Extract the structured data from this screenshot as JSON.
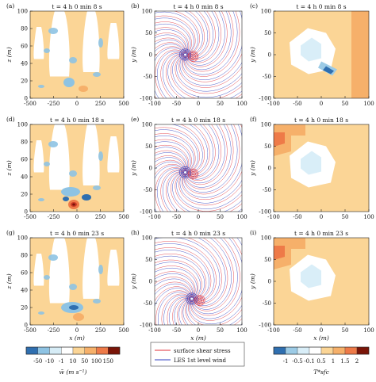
{
  "colors": {
    "c_neg50": "#2f6fb0",
    "c_neg10": "#8ec3e3",
    "c_neg1b": "#d6ecf6",
    "c_pale": "#ffffff",
    "c_10": "#fbd596",
    "c_50": "#f6b06a",
    "c_100": "#ee7a48",
    "c_150": "#cc3a26",
    "c_max": "#7a1508",
    "t_neg1": "#2f6fb0",
    "t_neg05": "#9ccbe6",
    "t_neg01": "#d9eef8",
    "t_0": "#ffffff",
    "t_05": "#fbd596",
    "t_1": "#f6b06a",
    "t_15": "#ee7a48",
    "t_2": "#7a1508",
    "red_line": "#e0303a",
    "blue_line": "#3040c0"
  },
  "chart_data": [
    {
      "panel": "a",
      "type": "heatmap",
      "title": "t = 4 h 0 min 8 s",
      "xlabel": "",
      "ylabel": "z (m)",
      "xlim": [
        -500,
        500
      ],
      "ylim": [
        0,
        100
      ],
      "xticks": [
        "-500",
        "-250",
        "0",
        "250",
        "500"
      ],
      "yticks": [
        "0",
        "20",
        "40",
        "60",
        "80",
        "100"
      ]
    },
    {
      "panel": "b",
      "type": "line",
      "title": "t = 4 h 0 min 8 s",
      "xlabel": "",
      "ylabel": "y (m)",
      "xlim": [
        -100,
        100
      ],
      "ylim": [
        -100,
        100
      ],
      "xticks": [
        "-100",
        "-50",
        "0",
        "50",
        "100"
      ],
      "yticks": [
        "-100",
        "-50",
        "0",
        "50",
        "100"
      ],
      "vortex": {
        "x": -30,
        "y": 0
      }
    },
    {
      "panel": "c",
      "type": "heatmap",
      "title": "t = 4 h 0 min 8 s",
      "xlabel": "",
      "ylabel": "y (m)",
      "xlim": [
        -100,
        100
      ],
      "ylim": [
        -100,
        100
      ],
      "xticks": [
        "-100",
        "-50",
        "0",
        "50",
        "100"
      ],
      "yticks": [
        "-100",
        "-50",
        "0",
        "50",
        "100"
      ]
    },
    {
      "panel": "d",
      "type": "heatmap",
      "title": "t = 4 h 0 min 18 s",
      "xlabel": "",
      "ylabel": "z (m)",
      "xlim": [
        -500,
        500
      ],
      "ylim": [
        0,
        100
      ],
      "xticks": [
        "-500",
        "-250",
        "0",
        "250",
        "500"
      ],
      "yticks": [
        "0",
        "20",
        "40",
        "60",
        "80",
        "100"
      ]
    },
    {
      "panel": "e",
      "type": "line",
      "title": "t = 4 h 0 min 18 s",
      "xlabel": "",
      "ylabel": "y (m)",
      "xlim": [
        -100,
        100
      ],
      "ylim": [
        -100,
        100
      ],
      "xticks": [
        "-100",
        "-50",
        "0",
        "50",
        "100"
      ],
      "yticks": [
        "-100",
        "-50",
        "0",
        "50",
        "100"
      ],
      "vortex": {
        "x": -30,
        "y": -10
      }
    },
    {
      "panel": "f",
      "type": "heatmap",
      "title": "t = 4 h 0 min 18 s",
      "xlabel": "",
      "ylabel": "y (m)",
      "xlim": [
        -100,
        100
      ],
      "ylim": [
        -100,
        100
      ],
      "xticks": [
        "-100",
        "-50",
        "0",
        "50",
        "100"
      ],
      "yticks": [
        "-100",
        "-50",
        "0",
        "50",
        "100"
      ]
    },
    {
      "panel": "g",
      "type": "heatmap",
      "title": "t = 4 h 0 min 23 s",
      "xlabel": "x (m)",
      "ylabel": "z (m)",
      "xlim": [
        -500,
        500
      ],
      "ylim": [
        0,
        100
      ],
      "xticks": [
        "-500",
        "-250",
        "0",
        "250",
        "500"
      ],
      "yticks": [
        "0",
        "20",
        "40",
        "60",
        "80",
        "100"
      ]
    },
    {
      "panel": "h",
      "type": "line",
      "title": "t = 4 h 0 min 23 s",
      "xlabel": "x (m)",
      "ylabel": "y (m)",
      "xlim": [
        -100,
        100
      ],
      "ylim": [
        -100,
        100
      ],
      "xticks": [
        "-100",
        "-50",
        "0",
        "50",
        "100"
      ],
      "yticks": [
        "-100",
        "-50",
        "0",
        "50",
        "100"
      ],
      "vortex": {
        "x": -15,
        "y": -40
      }
    },
    {
      "panel": "i",
      "type": "heatmap",
      "title": "t = 4 h 0 min 23 s",
      "xlabel": "x (m)",
      "ylabel": "y (m)",
      "xlim": [
        -100,
        100
      ],
      "ylim": [
        -100,
        100
      ],
      "xticks": [
        "-100",
        "-50",
        "0",
        "50",
        "100"
      ],
      "yticks": [
        "-100",
        "-50",
        "0",
        "50",
        "100"
      ]
    }
  ],
  "colorbar_w": {
    "labels": [
      "-50",
      "-10",
      "-1",
      "10",
      "50",
      "100",
      "150"
    ],
    "label": "w̃ (m s⁻¹)"
  },
  "colorbar_t": {
    "labels": [
      "-1",
      "-0.5",
      "-0.1",
      "0.5",
      "1",
      "1.5",
      "2"
    ],
    "label": "T*sfc"
  },
  "legend": {
    "entries": [
      "surface shear stress",
      "LES 1st level wind"
    ]
  },
  "text": {
    "xlabel": "x (m)",
    "ylabel_z": "z (m)",
    "ylabel_y": "y (m)"
  }
}
